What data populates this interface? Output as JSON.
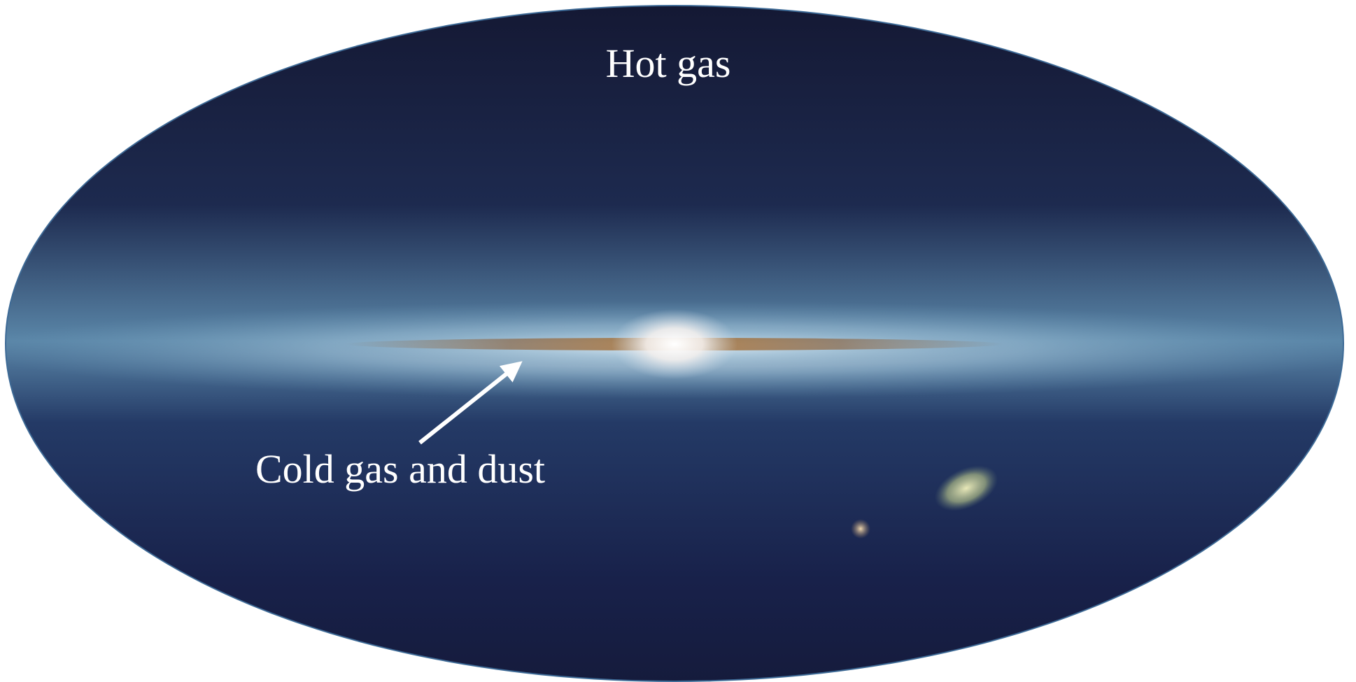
{
  "labels": {
    "top": "Hot gas",
    "arrow": "Cold gas and dust"
  }
}
